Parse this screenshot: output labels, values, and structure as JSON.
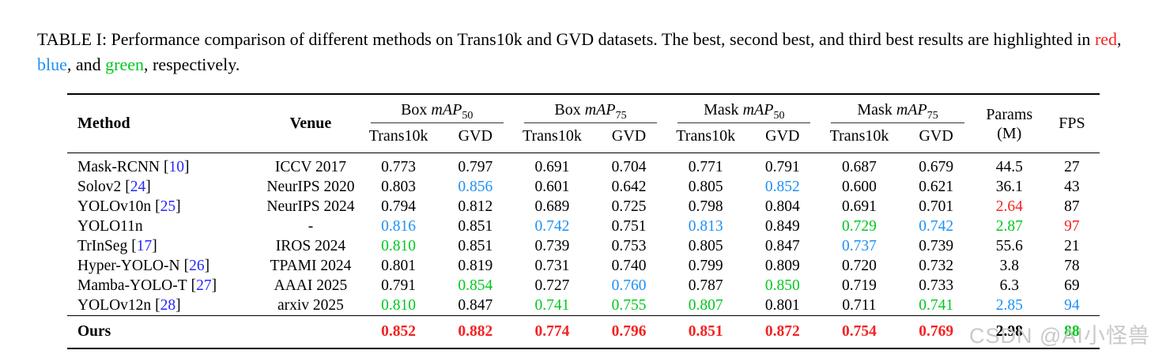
{
  "caption": {
    "segments": [
      {
        "text": "TABLE I: Performance comparison of different methods on Trans10k and GVD datasets. The best, second best, and third best results are highlighted in ",
        "color": "plain"
      },
      {
        "text": "red",
        "color": "red"
      },
      {
        "text": ", ",
        "color": "plain"
      },
      {
        "text": "blue",
        "color": "blue"
      },
      {
        "text": ", and ",
        "color": "plain"
      },
      {
        "text": "green",
        "color": "green"
      },
      {
        "text": ", respectively.",
        "color": "plain"
      }
    ]
  },
  "colors": {
    "best": "#f42222",
    "second": "#1e90f5",
    "third": "#00c81e",
    "cite": "#2626ff"
  },
  "table": {
    "header": {
      "method": "Method",
      "venue": "Venue",
      "math_label": "mAP",
      "groups": [
        {
          "type": "Box ",
          "sub": "50"
        },
        {
          "type": "Box ",
          "sub": "75"
        },
        {
          "type": "Mask ",
          "sub": "50"
        },
        {
          "type": "Mask ",
          "sub": "75"
        }
      ],
      "dataset_col_1": "Trans10k",
      "dataset_col_2": "GVD",
      "params_line1": "Params",
      "params_line2": "(M)",
      "fps": "FPS"
    },
    "rows": [
      {
        "method": "Mask-RCNN",
        "cite": "10",
        "venue": "ICCV 2017",
        "emphasis": false,
        "values": [
          {
            "v": "0.773",
            "c": "k"
          },
          {
            "v": "0.797",
            "c": "k"
          },
          {
            "v": "0.691",
            "c": "k"
          },
          {
            "v": "0.704",
            "c": "k"
          },
          {
            "v": "0.771",
            "c": "k"
          },
          {
            "v": "0.791",
            "c": "k"
          },
          {
            "v": "0.687",
            "c": "k"
          },
          {
            "v": "0.679",
            "c": "k"
          },
          {
            "v": "44.5",
            "c": "k"
          },
          {
            "v": "27",
            "c": "k"
          }
        ]
      },
      {
        "method": "Solov2",
        "cite": "24",
        "venue": "NeurIPS 2020",
        "emphasis": false,
        "values": [
          {
            "v": "0.803",
            "c": "k"
          },
          {
            "v": "0.856",
            "c": "b"
          },
          {
            "v": "0.601",
            "c": "k"
          },
          {
            "v": "0.642",
            "c": "k"
          },
          {
            "v": "0.805",
            "c": "k"
          },
          {
            "v": "0.852",
            "c": "b"
          },
          {
            "v": "0.600",
            "c": "k"
          },
          {
            "v": "0.621",
            "c": "k"
          },
          {
            "v": "36.1",
            "c": "k"
          },
          {
            "v": "43",
            "c": "k"
          }
        ]
      },
      {
        "method": "YOLOv10n",
        "cite": "25",
        "venue": "NeurIPS 2024",
        "emphasis": false,
        "values": [
          {
            "v": "0.794",
            "c": "k"
          },
          {
            "v": "0.812",
            "c": "k"
          },
          {
            "v": "0.689",
            "c": "k"
          },
          {
            "v": "0.725",
            "c": "k"
          },
          {
            "v": "0.798",
            "c": "k"
          },
          {
            "v": "0.804",
            "c": "k"
          },
          {
            "v": "0.691",
            "c": "k"
          },
          {
            "v": "0.701",
            "c": "k"
          },
          {
            "v": "2.64",
            "c": "r"
          },
          {
            "v": "87",
            "c": "k"
          }
        ]
      },
      {
        "method": "YOLO11n",
        "cite": null,
        "venue": "-",
        "emphasis": false,
        "values": [
          {
            "v": "0.816",
            "c": "b"
          },
          {
            "v": "0.851",
            "c": "k"
          },
          {
            "v": "0.742",
            "c": "b"
          },
          {
            "v": "0.751",
            "c": "k"
          },
          {
            "v": "0.813",
            "c": "b"
          },
          {
            "v": "0.849",
            "c": "k"
          },
          {
            "v": "0.729",
            "c": "g"
          },
          {
            "v": "0.742",
            "c": "b"
          },
          {
            "v": "2.87",
            "c": "g"
          },
          {
            "v": "97",
            "c": "r"
          }
        ]
      },
      {
        "method": "TrInSeg",
        "cite": "17",
        "venue": "IROS 2024",
        "emphasis": false,
        "values": [
          {
            "v": "0.810",
            "c": "g"
          },
          {
            "v": "0.851",
            "c": "k"
          },
          {
            "v": "0.739",
            "c": "k"
          },
          {
            "v": "0.753",
            "c": "k"
          },
          {
            "v": "0.805",
            "c": "k"
          },
          {
            "v": "0.847",
            "c": "k"
          },
          {
            "v": "0.737",
            "c": "b"
          },
          {
            "v": "0.739",
            "c": "k"
          },
          {
            "v": "55.6",
            "c": "k"
          },
          {
            "v": "21",
            "c": "k"
          }
        ]
      },
      {
        "method": "Hyper-YOLO-N",
        "cite": "26",
        "venue": "TPAMI 2024",
        "emphasis": false,
        "values": [
          {
            "v": "0.801",
            "c": "k"
          },
          {
            "v": "0.819",
            "c": "k"
          },
          {
            "v": "0.731",
            "c": "k"
          },
          {
            "v": "0.740",
            "c": "k"
          },
          {
            "v": "0.799",
            "c": "k"
          },
          {
            "v": "0.809",
            "c": "k"
          },
          {
            "v": "0.720",
            "c": "k"
          },
          {
            "v": "0.732",
            "c": "k"
          },
          {
            "v": "3.8",
            "c": "k"
          },
          {
            "v": "78",
            "c": "k"
          }
        ]
      },
      {
        "method": "Mamba-YOLO-T",
        "cite": "27",
        "venue": "AAAI 2025",
        "emphasis": false,
        "values": [
          {
            "v": "0.791",
            "c": "k"
          },
          {
            "v": "0.854",
            "c": "g"
          },
          {
            "v": "0.727",
            "c": "k"
          },
          {
            "v": "0.760",
            "c": "b"
          },
          {
            "v": "0.787",
            "c": "k"
          },
          {
            "v": "0.850",
            "c": "g"
          },
          {
            "v": "0.719",
            "c": "k"
          },
          {
            "v": "0.733",
            "c": "k"
          },
          {
            "v": "6.3",
            "c": "k"
          },
          {
            "v": "69",
            "c": "k"
          }
        ]
      },
      {
        "method": "YOLOv12n",
        "cite": "28",
        "venue": "arxiv 2025",
        "emphasis": false,
        "values": [
          {
            "v": "0.810",
            "c": "g"
          },
          {
            "v": "0.847",
            "c": "k"
          },
          {
            "v": "0.741",
            "c": "g"
          },
          {
            "v": "0.755",
            "c": "g"
          },
          {
            "v": "0.807",
            "c": "g"
          },
          {
            "v": "0.801",
            "c": "k"
          },
          {
            "v": "0.711",
            "c": "k"
          },
          {
            "v": "0.741",
            "c": "g"
          },
          {
            "v": "2.85",
            "c": "b"
          },
          {
            "v": "94",
            "c": "b"
          }
        ]
      },
      {
        "method": "Ours",
        "cite": null,
        "venue": "",
        "emphasis": true,
        "values": [
          {
            "v": "0.852",
            "c": "r"
          },
          {
            "v": "0.882",
            "c": "r"
          },
          {
            "v": "0.774",
            "c": "r"
          },
          {
            "v": "0.796",
            "c": "r"
          },
          {
            "v": "0.851",
            "c": "r"
          },
          {
            "v": "0.872",
            "c": "r"
          },
          {
            "v": "0.754",
            "c": "r"
          },
          {
            "v": "0.769",
            "c": "r"
          },
          {
            "v": "2.98",
            "c": "k"
          },
          {
            "v": "88",
            "c": "g"
          }
        ]
      }
    ]
  },
  "watermark": {
    "text": "CSDN @AI小怪兽"
  }
}
